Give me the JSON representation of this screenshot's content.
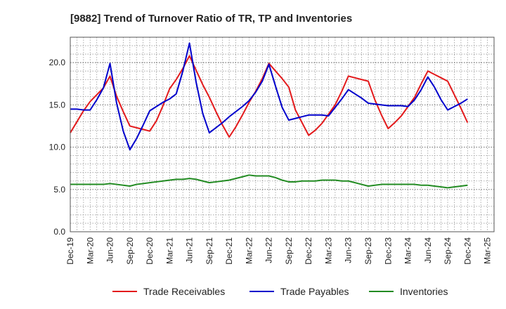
{
  "chart_data": {
    "type": "line",
    "title": "[9882]  Trend of Turnover Ratio of TR, TP and Inventories",
    "xlabel": "",
    "ylabel": "",
    "ylim": [
      0,
      23
    ],
    "yticks": [
      "0.0",
      "5.0",
      "10.0",
      "15.0",
      "20.0"
    ],
    "x_tick_labels": [
      "Dec-19",
      "Mar-20",
      "Jun-20",
      "Sep-20",
      "Dec-20",
      "Mar-21",
      "Jun-21",
      "Sep-21",
      "Dec-21",
      "Mar-22",
      "Jun-22",
      "Sep-22",
      "Dec-22",
      "Mar-23",
      "Jun-23",
      "Sep-23",
      "Dec-23",
      "Mar-24",
      "Jun-24",
      "Sep-24",
      "Dec-24",
      "Mar-25"
    ],
    "grid": true,
    "legend_position": "bottom",
    "x": [
      "Dec-19",
      "Jan-20",
      "Feb-20",
      "Mar-20",
      "Apr-20",
      "May-20",
      "Jun-20",
      "Jul-20",
      "Aug-20",
      "Sep-20",
      "Oct-20",
      "Nov-20",
      "Dec-20",
      "Jan-21",
      "Feb-21",
      "Mar-21",
      "Apr-21",
      "May-21",
      "Jun-21",
      "Jul-21",
      "Aug-21",
      "Sep-21",
      "Oct-21",
      "Nov-21",
      "Dec-21",
      "Jan-22",
      "Feb-22",
      "Mar-22",
      "Apr-22",
      "May-22",
      "Jun-22",
      "Jul-22",
      "Aug-22",
      "Sep-22",
      "Oct-22",
      "Nov-22",
      "Dec-22",
      "Jan-23",
      "Feb-23",
      "Mar-23",
      "Apr-23",
      "May-23",
      "Jun-23",
      "Jul-23",
      "Aug-23",
      "Sep-23",
      "Oct-23",
      "Nov-23",
      "Dec-23",
      "Jan-24",
      "Feb-24",
      "Mar-24",
      "Apr-24",
      "May-24",
      "Jun-24",
      "Jul-24",
      "Aug-24",
      "Sep-24",
      "Oct-24",
      "Nov-24",
      "Dec-24"
    ],
    "series": [
      {
        "name": "Trade Receivables",
        "color": "#e31a1c",
        "values": [
          11.7,
          13.0,
          14.3,
          15.4,
          16.2,
          17.0,
          18.4,
          16.0,
          14.2,
          12.5,
          12.3,
          12.1,
          11.9,
          13.1,
          14.9,
          16.9,
          18.0,
          19.3,
          20.8,
          19.1,
          17.4,
          15.9,
          14.2,
          12.6,
          11.2,
          12.4,
          13.8,
          15.3,
          16.6,
          18.1,
          19.9,
          19.0,
          18.1,
          17.1,
          14.4,
          12.9,
          11.4,
          12.0,
          12.8,
          13.9,
          15.0,
          16.6,
          18.4,
          18.2,
          18.0,
          17.8,
          15.6,
          13.8,
          12.2,
          12.9,
          13.7,
          14.8,
          15.9,
          17.5,
          19.0,
          18.6,
          18.2,
          17.8,
          16.2,
          14.6,
          12.9
        ]
      },
      {
        "name": "Trade Payables",
        "color": "#0000cc",
        "values": [
          14.5,
          14.5,
          14.4,
          14.4,
          15.6,
          17.0,
          19.9,
          15.2,
          11.9,
          9.7,
          11.0,
          12.6,
          14.3,
          14.8,
          15.3,
          15.7,
          16.3,
          19.0,
          22.3,
          17.7,
          14.0,
          11.7,
          12.3,
          12.9,
          13.6,
          14.2,
          14.8,
          15.5,
          16.5,
          17.8,
          19.8,
          17.2,
          14.7,
          13.2,
          13.4,
          13.6,
          13.8,
          13.8,
          13.8,
          13.7,
          14.7,
          15.7,
          16.8,
          16.3,
          15.8,
          15.2,
          15.1,
          15.0,
          14.9,
          14.9,
          14.9,
          14.8,
          15.6,
          16.8,
          18.3,
          17.1,
          15.6,
          14.4,
          14.8,
          15.2,
          15.7
        ]
      },
      {
        "name": "Inventories",
        "color": "#228b22",
        "values": [
          5.6,
          5.6,
          5.6,
          5.6,
          5.6,
          5.6,
          5.7,
          5.6,
          5.5,
          5.4,
          5.6,
          5.7,
          5.8,
          5.9,
          6.0,
          6.1,
          6.2,
          6.2,
          6.3,
          6.2,
          6.0,
          5.8,
          5.9,
          6.0,
          6.1,
          6.3,
          6.5,
          6.7,
          6.6,
          6.6,
          6.6,
          6.4,
          6.1,
          5.9,
          5.9,
          6.0,
          6.0,
          6.0,
          6.1,
          6.1,
          6.1,
          6.0,
          6.0,
          5.8,
          5.6,
          5.4,
          5.5,
          5.6,
          5.6,
          5.6,
          5.6,
          5.6,
          5.6,
          5.5,
          5.5,
          5.4,
          5.3,
          5.2,
          5.3,
          5.4,
          5.5
        ]
      }
    ]
  }
}
